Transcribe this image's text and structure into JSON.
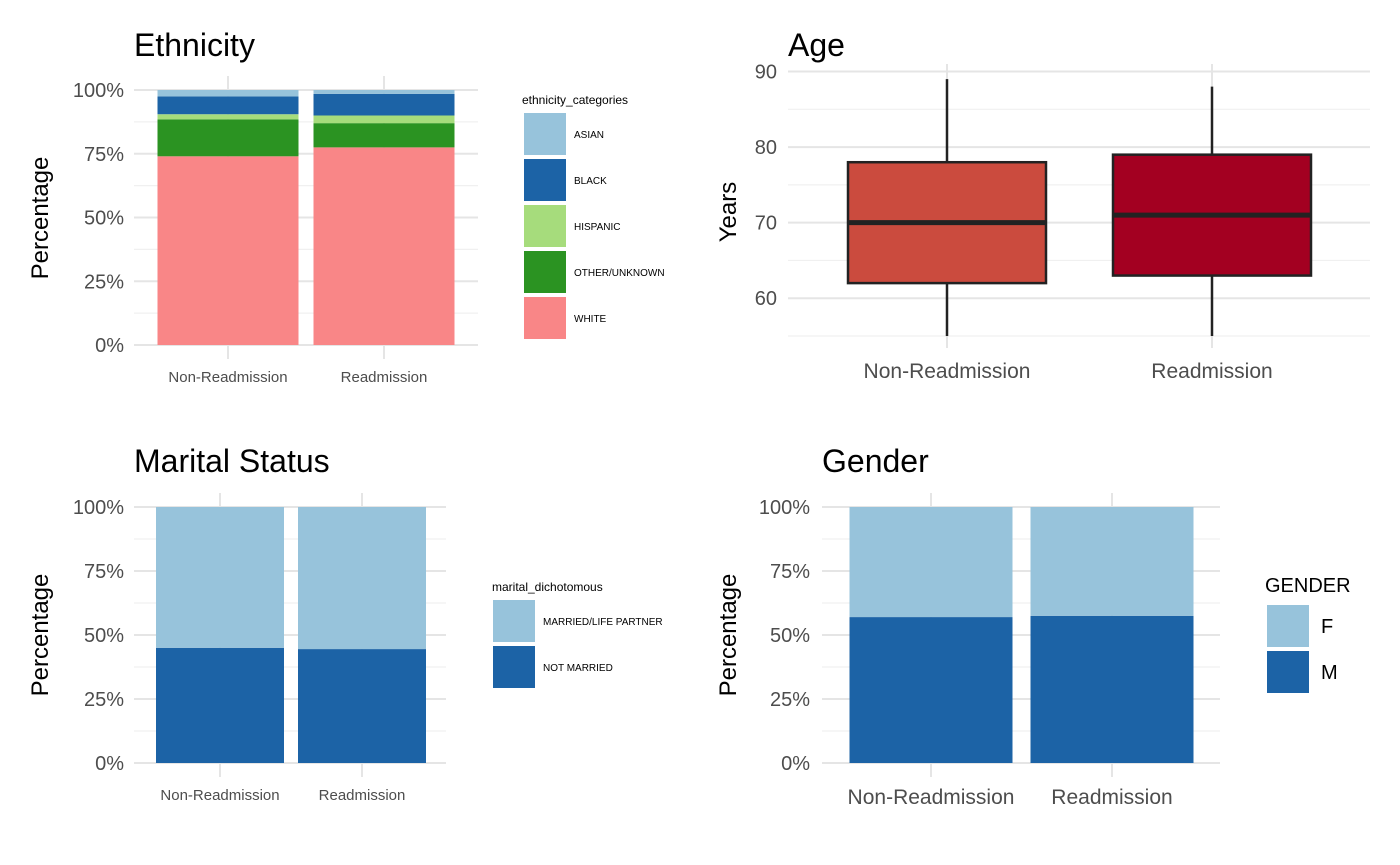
{
  "chart_data": [
    {
      "id": "ethnicity",
      "type": "bar",
      "stacked": true,
      "title": "Ethnicity",
      "xlabel": "",
      "ylabel": "Percentage",
      "categories": [
        "Non-Readmission",
        "Readmission"
      ],
      "yticks": [
        "0%",
        "25%",
        "50%",
        "75%",
        "100%"
      ],
      "ylim": [
        0,
        100
      ],
      "legend_title": "ethnicity_categories",
      "legend_position": "right",
      "series": [
        {
          "name": "ASIAN",
          "color": "#97c3db",
          "values": [
            2.5,
            1.5
          ]
        },
        {
          "name": "BLACK",
          "color": "#1c63a6",
          "values": [
            7.0,
            8.5
          ]
        },
        {
          "name": "HISPANIC",
          "color": "#a6dc7c",
          "values": [
            2.0,
            3.0
          ]
        },
        {
          "name": "OTHER/UNKNOWN",
          "color": "#2b9322",
          "values": [
            14.5,
            9.5
          ]
        },
        {
          "name": "WHITE",
          "color": "#f98687",
          "values": [
            74.0,
            77.5
          ]
        }
      ]
    },
    {
      "id": "age",
      "type": "boxplot",
      "title": "Age",
      "xlabel": "",
      "ylabel": "Years",
      "categories": [
        "Non-Readmission",
        "Readmission"
      ],
      "yticks": [
        "60",
        "70",
        "80",
        "90"
      ],
      "ylim": [
        55,
        91
      ],
      "boxes": [
        {
          "name": "Non-Readmission",
          "color": "#cb4b3e",
          "whisker_low": 55,
          "q1": 62,
          "median": 70,
          "q3": 78,
          "whisker_high": 89
        },
        {
          "name": "Readmission",
          "color": "#a30021",
          "whisker_low": 55,
          "q1": 63,
          "median": 71,
          "q3": 79,
          "whisker_high": 88
        }
      ]
    },
    {
      "id": "marital",
      "type": "bar",
      "stacked": true,
      "title": "Marital Status",
      "xlabel": "",
      "ylabel": "Percentage",
      "categories": [
        "Non-Readmission",
        "Readmission"
      ],
      "yticks": [
        "0%",
        "25%",
        "50%",
        "75%",
        "100%"
      ],
      "ylim": [
        0,
        100
      ],
      "legend_title": "marital_dichotomous",
      "legend_position": "right",
      "series": [
        {
          "name": "MARRIED/LIFE PARTNER",
          "color": "#97c3db",
          "values": [
            55.0,
            55.5
          ]
        },
        {
          "name": "NOT MARRIED",
          "color": "#1c63a6",
          "values": [
            45.0,
            44.5
          ]
        }
      ]
    },
    {
      "id": "gender",
      "type": "bar",
      "stacked": true,
      "title": "Gender",
      "xlabel": "",
      "ylabel": "Percentage",
      "categories": [
        "Non-Readmission",
        "Readmission"
      ],
      "yticks": [
        "0%",
        "25%",
        "50%",
        "75%",
        "100%"
      ],
      "ylim": [
        0,
        100
      ],
      "legend_title": "GENDER",
      "legend_position": "right",
      "series": [
        {
          "name": "F",
          "color": "#97c3db",
          "values": [
            43.0,
            42.5
          ]
        },
        {
          "name": "M",
          "color": "#1c63a6",
          "values": [
            57.0,
            57.5
          ]
        }
      ]
    }
  ]
}
